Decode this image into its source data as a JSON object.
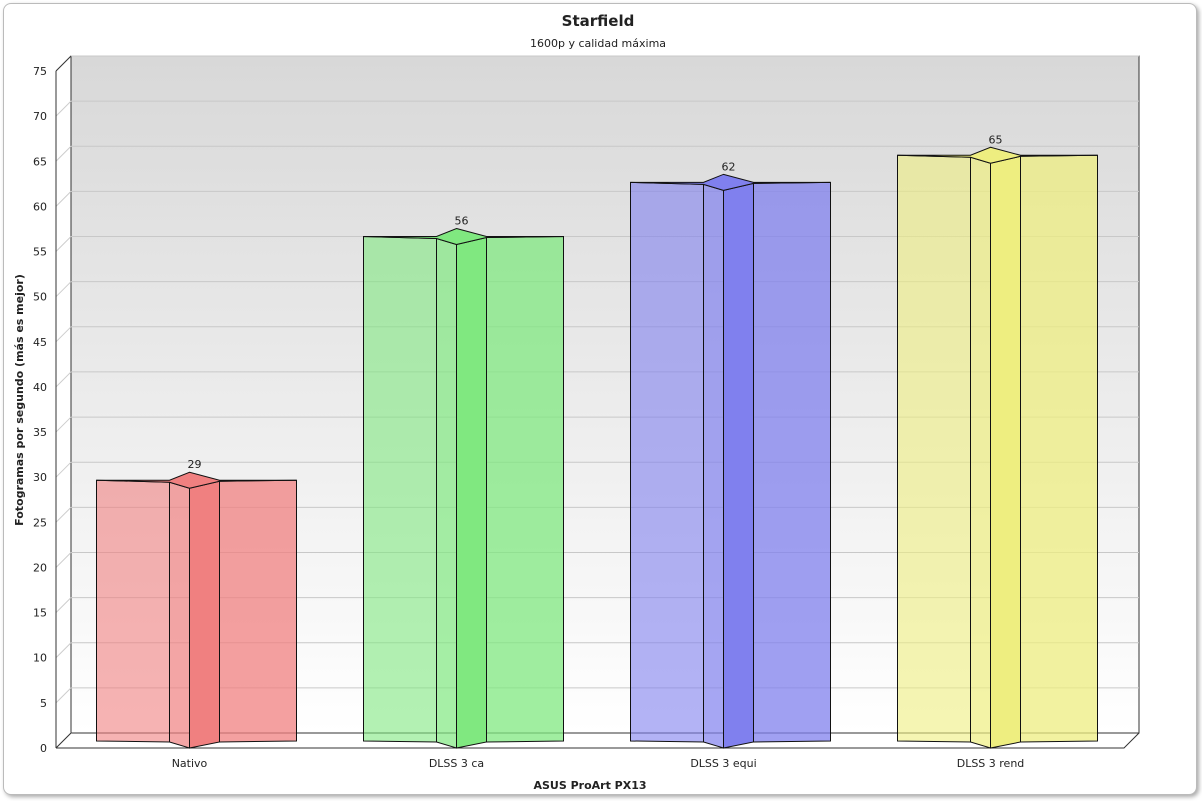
{
  "chart_data": {
    "type": "bar",
    "title": "Starfield",
    "subtitle": "1600p y calidad máxima",
    "xlabel": "ASUS ProArt PX13",
    "ylabel": "Fotogramas por segundo (más es mejor)",
    "categories": [
      "Nativo",
      "DLSS 3 ca",
      "DLSS 3 equi",
      "DLSS 3 rend"
    ],
    "values": [
      29,
      56,
      62,
      65
    ],
    "data_labels": [
      "29",
      "56",
      "62",
      "65"
    ],
    "colors": [
      "#f08080",
      "#80e880",
      "#8080ee",
      "#eeee80"
    ],
    "ylim": [
      0,
      75
    ],
    "yticks": [
      "0",
      "5",
      "10",
      "15",
      "20",
      "25",
      "30",
      "35",
      "40",
      "45",
      "50",
      "55",
      "60",
      "65",
      "70",
      "75"
    ],
    "grid": true,
    "legend": "none",
    "style": "3d"
  }
}
